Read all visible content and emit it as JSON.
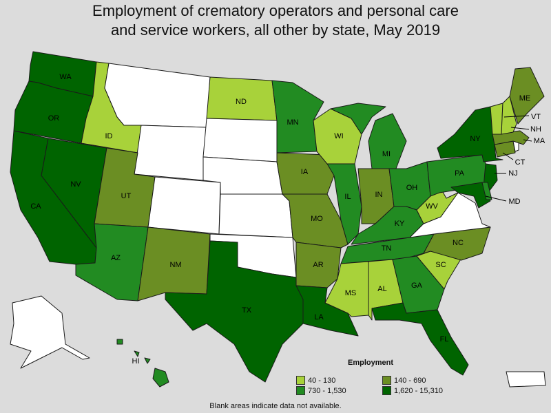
{
  "title_line1": "Employment of crematory operators and personal care",
  "title_line2": "and service workers, all other by state, May 2019",
  "legend": {
    "title": "Employment",
    "items": [
      {
        "range": "40 - 130",
        "color": "#a8d23a"
      },
      {
        "range": "140 - 690",
        "color": "#6b8e23"
      },
      {
        "range": "730 - 1,530",
        "color": "#228b22"
      },
      {
        "range": "1,620 - 15,310",
        "color": "#006400"
      }
    ]
  },
  "note": "Blank areas indicate data not available.",
  "chart_data": {
    "type": "choropleth",
    "classes": [
      "40 - 130",
      "140 - 690",
      "730 - 1,530",
      "1,620 - 15,310"
    ],
    "states": {
      "WA": "1,620 - 15,310",
      "OR": "1,620 - 15,310",
      "CA": "1,620 - 15,310",
      "NV": "1,620 - 15,310",
      "ID": "40 - 130",
      "MT": "n/a",
      "WY": "n/a",
      "UT": "140 - 690",
      "CO": "n/a",
      "AZ": "730 - 1,530",
      "NM": "140 - 690",
      "ND": "40 - 130",
      "SD": "n/a",
      "NE": "n/a",
      "KS": "n/a",
      "OK": "n/a",
      "TX": "1,620 - 15,310",
      "MN": "730 - 1,530",
      "IA": "140 - 690",
      "MO": "140 - 690",
      "AR": "140 - 690",
      "LA": "1,620 - 15,310",
      "WI": "40 - 130",
      "IL": "730 - 1,530",
      "MI": "730 - 1,530",
      "IN": "140 - 690",
      "OH": "730 - 1,530",
      "KY": "730 - 1,530",
      "TN": "730 - 1,530",
      "MS": "40 - 130",
      "AL": "40 - 130",
      "GA": "730 - 1,530",
      "FL": "1,620 - 15,310",
      "SC": "40 - 130",
      "NC": "140 - 690",
      "VA": "n/a",
      "WV": "40 - 130",
      "PA": "730 - 1,530",
      "NY": "1,620 - 15,310",
      "NJ": "1,620 - 15,310",
      "MD": "1,620 - 15,310",
      "DE": "730 - 1,530",
      "CT": "140 - 690",
      "RI": "n/a",
      "MA": "140 - 690",
      "VT": "40 - 130",
      "NH": "40 - 130",
      "ME": "140 - 690",
      "AK": "n/a",
      "HI": "730 - 1,530",
      "PR": "n/a"
    }
  },
  "labels": {
    "WA": "WA",
    "OR": "OR",
    "CA": "CA",
    "NV": "NV",
    "ID": "ID",
    "UT": "UT",
    "AZ": "AZ",
    "NM": "NM",
    "ND": "ND",
    "TX": "TX",
    "MN": "MN",
    "IA": "IA",
    "MO": "MO",
    "AR": "AR",
    "LA": "LA",
    "WI": "WI",
    "IL": "IL",
    "MI": "MI",
    "IN": "IN",
    "OH": "OH",
    "KY": "KY",
    "TN": "TN",
    "MS": "MS",
    "AL": "AL",
    "GA": "GA",
    "FL": "FL",
    "SC": "SC",
    "NC": "NC",
    "WV": "WV",
    "PA": "PA",
    "NY": "NY",
    "NJ": "NJ",
    "MD": "MD",
    "CT": "CT",
    "MA": "MA",
    "VT": "VT",
    "NH": "NH",
    "ME": "ME",
    "HI": "HI"
  }
}
